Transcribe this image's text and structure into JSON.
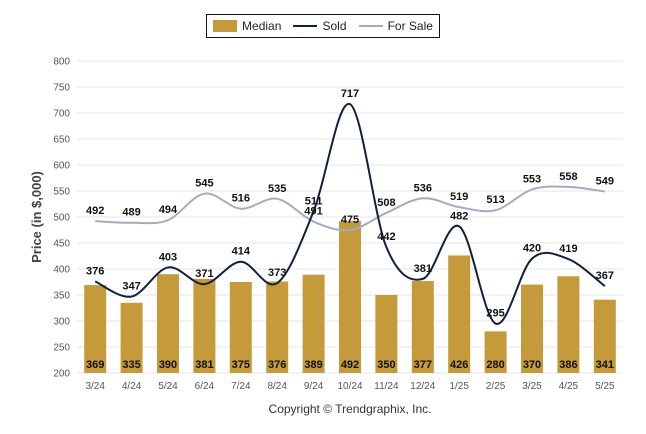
{
  "chart_data": {
    "type": "bar",
    "ylabel": "Price (in $,000)",
    "ylim": [
      200,
      800
    ],
    "yticks": [
      200,
      250,
      300,
      350,
      400,
      450,
      500,
      550,
      600,
      650,
      700,
      750,
      800
    ],
    "grid": true,
    "legend_position": "top-center",
    "categories": [
      "3/24",
      "4/24",
      "5/24",
      "6/24",
      "7/24",
      "8/24",
      "9/24",
      "10/24",
      "11/24",
      "12/24",
      "1/25",
      "2/25",
      "3/25",
      "4/25",
      "5/25"
    ],
    "series": [
      {
        "name": "Median",
        "kind": "bar",
        "color": "#C49A3A",
        "values": [
          369,
          335,
          390,
          381,
          375,
          376,
          389,
          492,
          350,
          377,
          426,
          280,
          370,
          386,
          341
        ]
      },
      {
        "name": "Sold",
        "kind": "line",
        "color": "#0E2240",
        "values": [
          376,
          347,
          403,
          371,
          414,
          373,
          511,
          717,
          442,
          381,
          482,
          295,
          420,
          419,
          367
        ]
      },
      {
        "name": "For Sale",
        "kind": "line",
        "color": "#A3ABC5",
        "values": [
          492,
          489,
          494,
          545,
          516,
          535,
          491,
          475,
          508,
          536,
          519,
          513,
          553,
          558,
          549
        ]
      }
    ],
    "footer": "Copyright © Trendgraphix, Inc."
  }
}
